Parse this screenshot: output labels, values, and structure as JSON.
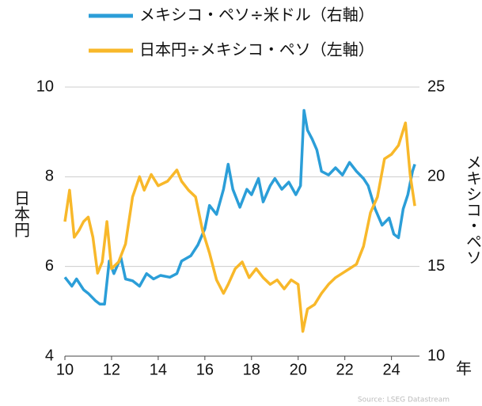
{
  "chart_data": {
    "type": "line",
    "x_unit_label": "年",
    "ylabel": "日本円",
    "y2label": "メキシコ・ペソ",
    "source": "Source: LSEG Datastream",
    "xlim": [
      10,
      25.2
    ],
    "xticks": [
      10,
      12,
      14,
      16,
      18,
      20,
      22,
      24
    ],
    "ylim": [
      4,
      10
    ],
    "yticks": [
      4,
      6,
      8,
      10
    ],
    "y2lim": [
      10,
      25
    ],
    "y2ticks": [
      10,
      15,
      20,
      25
    ],
    "grid": true,
    "series": [
      {
        "name": "メキシコ・ペソ÷米ドル（右軸）",
        "color": "#2b9ed8",
        "axis": "y2",
        "x": [
          10.0,
          10.3,
          10.5,
          10.8,
          11.0,
          11.3,
          11.5,
          11.7,
          11.9,
          12.1,
          12.4,
          12.6,
          12.9,
          13.2,
          13.5,
          13.8,
          14.1,
          14.5,
          14.8,
          15.0,
          15.4,
          15.7,
          16.0,
          16.2,
          16.5,
          16.8,
          17.0,
          17.2,
          17.5,
          17.8,
          18.0,
          18.3,
          18.5,
          18.8,
          19.0,
          19.3,
          19.6,
          19.9,
          20.1,
          20.25,
          20.4,
          20.6,
          20.8,
          21.0,
          21.3,
          21.6,
          21.9,
          22.2,
          22.5,
          22.8,
          23.0,
          23.3,
          23.6,
          23.9,
          24.1,
          24.3,
          24.5,
          24.7,
          24.9,
          25.0
        ],
        "values": [
          14.4,
          13.9,
          14.3,
          13.7,
          13.5,
          13.1,
          12.9,
          12.9,
          15.3,
          14.6,
          15.5,
          14.3,
          14.2,
          13.9,
          14.6,
          14.3,
          14.5,
          14.4,
          14.6,
          15.3,
          15.6,
          16.2,
          17.1,
          18.4,
          17.9,
          19.3,
          20.7,
          19.3,
          18.3,
          19.3,
          19.0,
          19.9,
          18.6,
          19.5,
          19.9,
          19.3,
          19.7,
          19.0,
          19.5,
          23.7,
          22.6,
          22.1,
          21.5,
          20.3,
          20.1,
          20.5,
          20.1,
          20.8,
          20.3,
          19.9,
          19.5,
          18.2,
          17.3,
          17.7,
          16.8,
          16.6,
          18.2,
          19.0,
          20.3,
          20.7
        ]
      },
      {
        "name": "日本円÷メキシコ・ペソ（左軸）",
        "color": "#f8b82a",
        "axis": "y",
        "x": [
          10.0,
          10.2,
          10.4,
          10.6,
          10.8,
          11.0,
          11.2,
          11.4,
          11.6,
          11.8,
          12.0,
          12.3,
          12.6,
          12.9,
          13.2,
          13.4,
          13.7,
          14.0,
          14.4,
          14.8,
          15.0,
          15.3,
          15.6,
          15.9,
          16.2,
          16.5,
          16.8,
          17.0,
          17.3,
          17.6,
          17.9,
          18.2,
          18.5,
          18.8,
          19.1,
          19.4,
          19.7,
          20.0,
          20.2,
          20.4,
          20.7,
          21.0,
          21.3,
          21.6,
          21.9,
          22.2,
          22.5,
          22.8,
          23.1,
          23.4,
          23.7,
          24.0,
          24.3,
          24.6,
          24.8,
          25.0
        ],
        "values": [
          7.0,
          7.7,
          6.65,
          6.8,
          7.0,
          7.1,
          6.65,
          5.85,
          6.1,
          7.0,
          5.95,
          6.1,
          6.5,
          7.55,
          8.0,
          7.7,
          8.05,
          7.8,
          7.9,
          8.15,
          7.9,
          7.7,
          7.55,
          6.8,
          6.3,
          5.7,
          5.4,
          5.6,
          5.95,
          6.1,
          5.75,
          5.95,
          5.75,
          5.6,
          5.7,
          5.5,
          5.7,
          5.6,
          4.55,
          5.05,
          5.15,
          5.4,
          5.6,
          5.75,
          5.85,
          5.95,
          6.05,
          6.45,
          7.2,
          7.55,
          8.4,
          8.5,
          8.7,
          9.2,
          8.05,
          7.35
        ]
      }
    ]
  }
}
